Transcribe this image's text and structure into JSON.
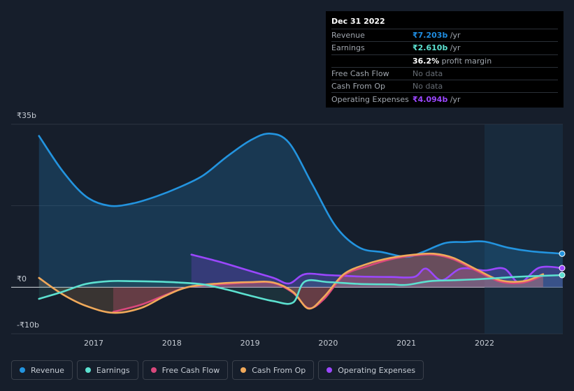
{
  "tooltip": {
    "date": "Dec 31 2022",
    "rows": [
      {
        "label": "Revenue",
        "value": "₹7.203b",
        "unit": " /yr",
        "color": "#1f8ce0"
      },
      {
        "label": "Earnings",
        "value": "₹2.610b",
        "unit": " /yr",
        "color": "#5ce1d0"
      },
      {
        "label": "",
        "value": "36.2%",
        "unit": " profit margin",
        "color": "#ffffff"
      },
      {
        "label": "Free Cash Flow",
        "value": "No data",
        "unit": "",
        "color": "#676d75"
      },
      {
        "label": "Cash From Op",
        "value": "No data",
        "unit": "",
        "color": "#676d75"
      },
      {
        "label": "Operating Expenses",
        "value": "₹4.094b",
        "unit": " /yr",
        "color": "#9b47ff"
      }
    ]
  },
  "legend": [
    {
      "label": "Revenue",
      "color": "#2394df"
    },
    {
      "label": "Earnings",
      "color": "#5ce1d0"
    },
    {
      "label": "Free Cash Flow",
      "color": "#d9487c"
    },
    {
      "label": "Cash From Op",
      "color": "#f0a95a"
    },
    {
      "label": "Operating Expenses",
      "color": "#9b47ff"
    }
  ],
  "chart_data": {
    "type": "line",
    "title": "",
    "xlabel": "",
    "ylabel": "",
    "y_tick_labels": [
      "₹35b",
      "₹0",
      "-₹10b"
    ],
    "x_tick_labels": [
      "2017",
      "2018",
      "2019",
      "2020",
      "2021",
      "2022"
    ],
    "ylim": [
      -10,
      35
    ],
    "xlim": [
      2016.3,
      2023.0
    ],
    "highlight_from": 2022.0,
    "series": [
      {
        "name": "Revenue",
        "color": "#2394df",
        "fill": true,
        "x": [
          2016.3,
          2016.6,
          2016.9,
          2017.2,
          2017.5,
          2017.8,
          2018.1,
          2018.4,
          2018.7,
          2019.0,
          2019.25,
          2019.5,
          2019.8,
          2020.1,
          2020.4,
          2020.7,
          2021.0,
          2021.2,
          2021.5,
          2021.75,
          2022.0,
          2022.3,
          2022.6,
          2023.0
        ],
        "y": [
          32.5,
          25.0,
          19.5,
          17.5,
          18.0,
          19.5,
          21.5,
          24.0,
          28.0,
          31.5,
          33.0,
          31.0,
          22.0,
          13.0,
          8.5,
          7.5,
          6.5,
          7.5,
          9.5,
          9.7,
          9.8,
          8.5,
          7.7,
          7.2
        ]
      },
      {
        "name": "Earnings",
        "color": "#5ce1d0",
        "fill": true,
        "x": [
          2016.3,
          2016.6,
          2016.9,
          2017.2,
          2017.5,
          2017.8,
          2018.1,
          2018.4,
          2018.7,
          2019.0,
          2019.3,
          2019.55,
          2019.7,
          2020.0,
          2020.4,
          2020.8,
          2021.0,
          2021.3,
          2021.6,
          2021.9,
          2022.2,
          2022.5,
          2023.0
        ],
        "y": [
          -2.5,
          -1.0,
          0.7,
          1.3,
          1.3,
          1.2,
          1.0,
          0.6,
          -0.5,
          -1.8,
          -3.0,
          -3.3,
          1.2,
          1.1,
          0.7,
          0.6,
          0.5,
          1.3,
          1.5,
          1.7,
          2.0,
          2.3,
          2.6
        ]
      },
      {
        "name": "Free Cash Flow",
        "color": "#d9487c",
        "fill": true,
        "x": [
          2016.3,
          2016.6,
          2016.9,
          2017.25,
          2017.6,
          2017.9,
          2018.2,
          2018.6,
          2019.0,
          2019.3,
          2019.55,
          2019.75,
          2019.95,
          2020.2,
          2020.5,
          2020.8,
          2021.1,
          2021.35,
          2021.6,
          2021.9,
          2022.2,
          2022.5,
          2022.75
        ],
        "y": [
          null,
          null,
          null,
          -5.3,
          -3.8,
          -1.8,
          0.0,
          0.6,
          1.0,
          0.9,
          -1.2,
          -4.5,
          -2.5,
          2.5,
          4.5,
          6.0,
          6.8,
          7.0,
          6.0,
          3.5,
          1.2,
          1.0,
          2.5
        ]
      },
      {
        "name": "Cash From Op",
        "color": "#f0a95a",
        "fill": true,
        "x": [
          2016.3,
          2016.6,
          2016.9,
          2017.25,
          2017.6,
          2017.9,
          2018.2,
          2018.6,
          2019.0,
          2019.3,
          2019.55,
          2019.75,
          2019.95,
          2020.2,
          2020.5,
          2020.8,
          2021.1,
          2021.35,
          2021.6,
          2021.9,
          2022.2,
          2022.5,
          2022.75
        ],
        "y": [
          2.0,
          -1.5,
          -4.0,
          -5.5,
          -4.5,
          -2.0,
          0.0,
          0.8,
          1.1,
          1.0,
          -1.0,
          -4.6,
          -2.0,
          2.8,
          5.0,
          6.3,
          7.0,
          7.2,
          6.3,
          3.8,
          1.5,
          1.3,
          2.8
        ]
      },
      {
        "name": "Operating Expenses",
        "color": "#9b47ff",
        "fill": true,
        "x": [
          2018.25,
          2018.6,
          2019.0,
          2019.3,
          2019.5,
          2019.7,
          2020.0,
          2020.4,
          2020.8,
          2021.1,
          2021.25,
          2021.45,
          2021.7,
          2022.0,
          2022.25,
          2022.45,
          2022.7,
          2023.0
        ],
        "y": [
          7.0,
          5.5,
          3.5,
          2.0,
          0.8,
          2.8,
          2.6,
          2.3,
          2.2,
          2.2,
          4.0,
          1.5,
          4.0,
          3.6,
          4.0,
          1.0,
          4.2,
          4.1
        ]
      }
    ]
  }
}
